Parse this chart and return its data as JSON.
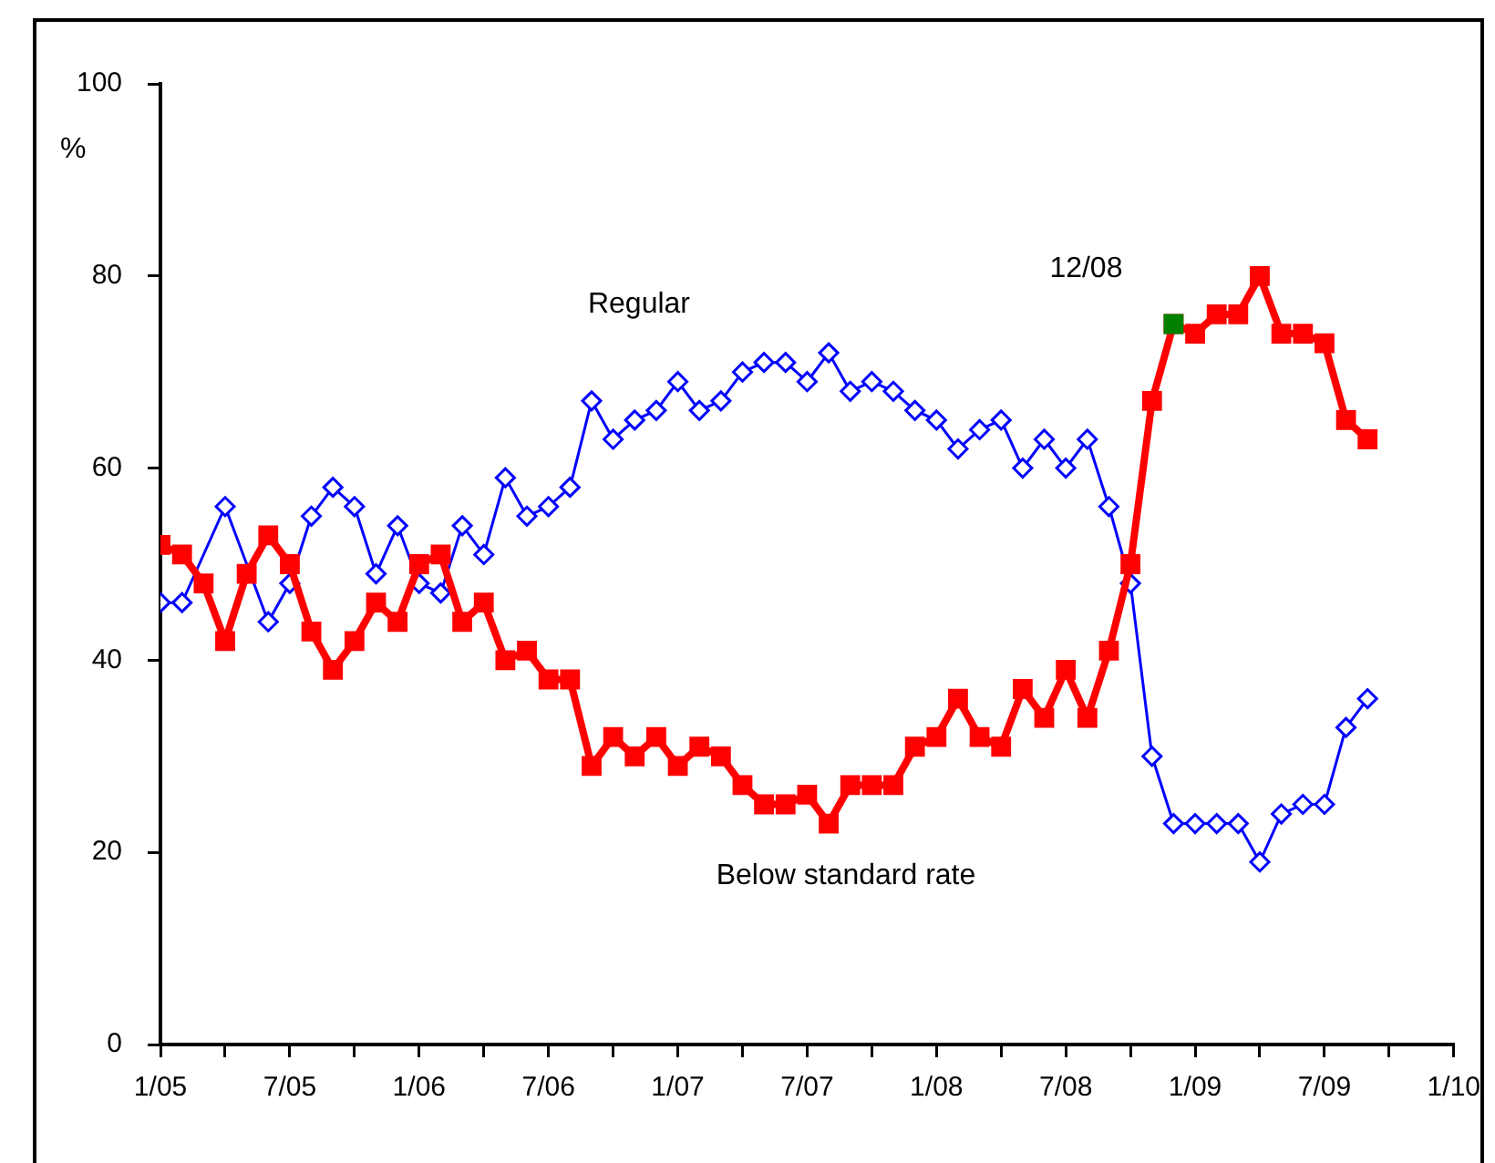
{
  "chart_data": {
    "type": "line",
    "ylabel": "%",
    "ylim": [
      0,
      100
    ],
    "yticks": [
      0,
      20,
      40,
      60,
      80,
      100
    ],
    "xlim": [
      "2005-01",
      "2010-01"
    ],
    "xticks": [
      {
        "value": "2005-01",
        "label": "1/05"
      },
      {
        "value": "2005-04",
        "label": null
      },
      {
        "value": "2005-07",
        "label": "7/05"
      },
      {
        "value": "2005-10",
        "label": null
      },
      {
        "value": "2006-01",
        "label": "1/06"
      },
      {
        "value": "2006-04",
        "label": null
      },
      {
        "value": "2006-07",
        "label": "7/06"
      },
      {
        "value": "2006-10",
        "label": null
      },
      {
        "value": "2007-01",
        "label": "1/07"
      },
      {
        "value": "2007-04",
        "label": null
      },
      {
        "value": "2007-07",
        "label": "7/07"
      },
      {
        "value": "2007-10",
        "label": null
      },
      {
        "value": "2008-01",
        "label": "1/08"
      },
      {
        "value": "2008-04",
        "label": null
      },
      {
        "value": "2008-07",
        "label": "7/08"
      },
      {
        "value": "2008-10",
        "label": null
      },
      {
        "value": "2009-01",
        "label": "1/09"
      },
      {
        "value": "2009-04",
        "label": null
      },
      {
        "value": "2009-07",
        "label": "7/09"
      },
      {
        "value": "2009-10",
        "label": null
      },
      {
        "value": "2010-01",
        "label": "1/10"
      }
    ],
    "x": [
      "2005-01",
      "2005-02",
      "2005-03",
      "2005-04",
      "2005-05",
      "2005-06",
      "2005-07",
      "2005-08",
      "2005-09",
      "2005-10",
      "2005-11",
      "2005-12",
      "2006-01",
      "2006-02",
      "2006-03",
      "2006-04",
      "2006-05",
      "2006-06",
      "2006-07",
      "2006-08",
      "2006-09",
      "2006-10",
      "2006-11",
      "2006-12",
      "2007-01",
      "2007-02",
      "2007-03",
      "2007-04",
      "2007-05",
      "2007-06",
      "2007-07",
      "2007-08",
      "2007-09",
      "2007-10",
      "2007-11",
      "2007-12",
      "2008-01",
      "2008-02",
      "2008-03",
      "2008-04",
      "2008-05",
      "2008-06",
      "2008-07",
      "2008-08",
      "2008-09",
      "2008-10",
      "2008-11",
      "2008-12",
      "2009-01",
      "2009-02",
      "2009-03",
      "2009-04",
      "2009-05",
      "2009-06",
      "2009-07",
      "2009-08",
      "2009-09"
    ],
    "series": [
      {
        "name": "Regular",
        "color": "#0000ff",
        "marker": "diamond",
        "values": [
          46,
          46,
          null,
          56,
          null,
          44,
          48,
          55,
          58,
          56,
          49,
          54,
          48,
          47,
          54,
          51,
          59,
          55,
          56,
          58,
          67,
          63,
          65,
          66,
          69,
          66,
          67,
          70,
          71,
          71,
          69,
          72,
          68,
          69,
          68,
          66,
          65,
          62,
          64,
          65,
          60,
          63,
          60,
          63,
          56,
          48,
          30,
          23,
          23,
          23,
          23,
          19,
          24,
          25,
          25,
          33,
          36
        ]
      },
      {
        "name": "Below standard rate",
        "color": "#ff0000",
        "marker": "square",
        "values": [
          52,
          51,
          48,
          42,
          49,
          53,
          50,
          43,
          39,
          42,
          46,
          44,
          50,
          51,
          44,
          46,
          40,
          41,
          38,
          38,
          29,
          32,
          30,
          32,
          29,
          31,
          30,
          27,
          25,
          25,
          26,
          23,
          27,
          27,
          27,
          31,
          32,
          36,
          32,
          31,
          37,
          34,
          39,
          34,
          41,
          50,
          67,
          75,
          74,
          76,
          76,
          80,
          74,
          74,
          73,
          65,
          63
        ]
      },
      {
        "type": "scatter",
        "color": "#008000",
        "marker": "square",
        "x": [
          "2008-12"
        ],
        "values": [
          75
        ]
      }
    ],
    "annotations": [
      {
        "text": "12/08",
        "x": "2008-12",
        "y": 75
      }
    ],
    "grid": false,
    "legend": false
  }
}
